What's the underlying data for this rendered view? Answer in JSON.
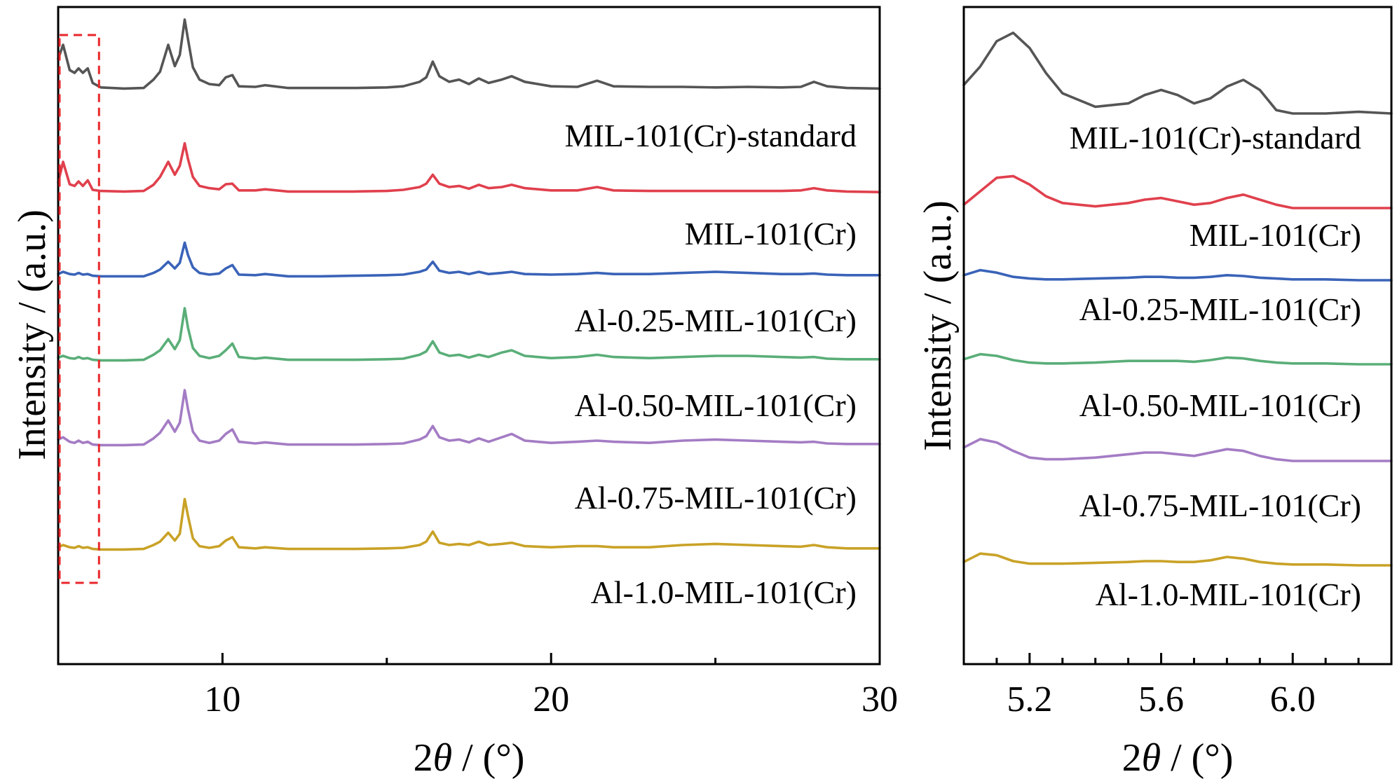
{
  "chart_data": [
    {
      "type": "line",
      "xlabel_prefix": "2",
      "xlabel_theta": "θ",
      "xlabel_suffix": " / (°)",
      "ylabel": "Intensity / (a.u.)",
      "xlim": [
        5,
        30
      ],
      "xticks": [
        10,
        20,
        30
      ],
      "minor_xticks": [
        15,
        25
      ],
      "y_ticks_shown": false,
      "highlight_box_x": [
        5,
        6.2
      ],
      "series": [
        {
          "name": "MIL-101(Cr)-standard",
          "color": "#555555",
          "x": [
            5.0,
            5.15,
            5.35,
            5.5,
            5.62,
            5.75,
            5.9,
            6.05,
            6.3,
            7.0,
            7.6,
            7.9,
            8.1,
            8.35,
            8.55,
            8.7,
            8.85,
            8.95,
            9.1,
            9.3,
            9.6,
            9.9,
            10.1,
            10.3,
            10.5,
            11.0,
            11.3,
            12.0,
            13.0,
            14.0,
            15.0,
            15.5,
            16.0,
            16.2,
            16.4,
            16.6,
            16.9,
            17.2,
            17.5,
            17.8,
            18.1,
            18.5,
            18.8,
            19.2,
            20.0,
            20.8,
            21.4,
            21.9,
            23.0,
            24.0,
            25.0,
            26.0,
            27.0,
            27.6,
            28.0,
            28.4,
            29.0,
            30.0
          ],
          "y": [
            0.55,
            0.8,
            0.35,
            0.3,
            0.38,
            0.3,
            0.38,
            0.12,
            0.04,
            0.02,
            0.03,
            0.18,
            0.32,
            0.8,
            0.42,
            0.62,
            1.25,
            0.9,
            0.4,
            0.18,
            0.1,
            0.08,
            0.22,
            0.26,
            0.06,
            0.05,
            0.08,
            0.03,
            0.03,
            0.03,
            0.04,
            0.06,
            0.14,
            0.22,
            0.5,
            0.24,
            0.14,
            0.18,
            0.1,
            0.2,
            0.12,
            0.18,
            0.24,
            0.14,
            0.06,
            0.05,
            0.16,
            0.06,
            0.05,
            0.05,
            0.04,
            0.05,
            0.04,
            0.05,
            0.14,
            0.06,
            0.03,
            0.02
          ]
        },
        {
          "name": "MIL-101(Cr)",
          "color": "#e0404d",
          "x": [
            5.0,
            5.15,
            5.35,
            5.5,
            5.62,
            5.75,
            5.9,
            6.05,
            6.3,
            7.0,
            7.6,
            7.9,
            8.1,
            8.35,
            8.55,
            8.7,
            8.85,
            8.95,
            9.1,
            9.3,
            9.6,
            9.9,
            10.1,
            10.3,
            10.5,
            11.0,
            11.3,
            12.0,
            13.0,
            14.0,
            15.0,
            15.5,
            16.0,
            16.2,
            16.4,
            16.6,
            16.9,
            17.2,
            17.5,
            17.8,
            18.1,
            18.5,
            18.8,
            19.2,
            20.0,
            20.8,
            21.4,
            21.9,
            23.0,
            24.0,
            25.0,
            26.0,
            27.0,
            27.6,
            28.0,
            28.4,
            29.0,
            30.0
          ],
          "y": [
            0.18,
            0.55,
            0.15,
            0.12,
            0.2,
            0.12,
            0.22,
            0.05,
            0.03,
            0.02,
            0.03,
            0.14,
            0.28,
            0.55,
            0.32,
            0.48,
            0.88,
            0.6,
            0.28,
            0.12,
            0.08,
            0.06,
            0.15,
            0.16,
            0.04,
            0.04,
            0.06,
            0.02,
            0.02,
            0.02,
            0.03,
            0.05,
            0.1,
            0.16,
            0.32,
            0.16,
            0.1,
            0.12,
            0.07,
            0.14,
            0.08,
            0.1,
            0.14,
            0.08,
            0.04,
            0.04,
            0.1,
            0.04,
            0.03,
            0.03,
            0.03,
            0.03,
            0.03,
            0.04,
            0.08,
            0.04,
            0.02,
            0.01
          ]
        },
        {
          "name": "Al-0.25-MIL-101(Cr)",
          "color": "#3a63b8",
          "x": [
            5.0,
            5.15,
            5.35,
            5.5,
            5.62,
            5.75,
            5.9,
            6.05,
            6.3,
            7.0,
            7.6,
            7.9,
            8.1,
            8.35,
            8.55,
            8.7,
            8.85,
            8.95,
            9.1,
            9.3,
            9.6,
            9.9,
            10.1,
            10.3,
            10.5,
            11.0,
            11.3,
            12.0,
            13.0,
            14.0,
            15.0,
            15.5,
            16.0,
            16.2,
            16.4,
            16.6,
            16.9,
            17.2,
            17.5,
            17.8,
            18.1,
            18.5,
            18.8,
            19.2,
            20.0,
            20.8,
            21.4,
            21.9,
            23.0,
            24.0,
            25.0,
            26.0,
            27.0,
            27.6,
            28.0,
            28.4,
            29.0,
            30.0
          ],
          "y": [
            0.06,
            0.1,
            0.06,
            0.05,
            0.08,
            0.05,
            0.06,
            0.03,
            0.02,
            0.02,
            0.02,
            0.08,
            0.14,
            0.28,
            0.16,
            0.26,
            0.62,
            0.4,
            0.18,
            0.08,
            0.05,
            0.07,
            0.16,
            0.22,
            0.05,
            0.04,
            0.06,
            0.02,
            0.02,
            0.03,
            0.04,
            0.05,
            0.1,
            0.14,
            0.28,
            0.12,
            0.08,
            0.1,
            0.06,
            0.1,
            0.06,
            0.08,
            0.1,
            0.06,
            0.05,
            0.06,
            0.08,
            0.06,
            0.06,
            0.08,
            0.1,
            0.08,
            0.06,
            0.06,
            0.07,
            0.05,
            0.04,
            0.04
          ]
        },
        {
          "name": "Al-0.50-MIL-101(Cr)",
          "color": "#5aae78",
          "x": [
            5.0,
            5.15,
            5.35,
            5.5,
            5.62,
            5.75,
            5.9,
            6.05,
            6.3,
            7.0,
            7.6,
            7.9,
            8.1,
            8.35,
            8.55,
            8.7,
            8.85,
            8.95,
            9.1,
            9.3,
            9.6,
            9.9,
            10.1,
            10.3,
            10.5,
            11.0,
            11.3,
            12.0,
            13.0,
            14.0,
            15.0,
            15.5,
            16.0,
            16.2,
            16.4,
            16.6,
            16.9,
            17.2,
            17.5,
            17.8,
            18.1,
            18.5,
            18.8,
            19.2,
            20.0,
            20.8,
            21.4,
            21.9,
            23.0,
            24.0,
            25.0,
            26.0,
            27.0,
            27.6,
            28.0,
            28.4,
            29.0,
            30.0
          ],
          "y": [
            0.07,
            0.1,
            0.06,
            0.05,
            0.08,
            0.05,
            0.06,
            0.03,
            0.02,
            0.02,
            0.03,
            0.12,
            0.2,
            0.4,
            0.22,
            0.38,
            0.95,
            0.6,
            0.24,
            0.1,
            0.06,
            0.1,
            0.2,
            0.32,
            0.08,
            0.05,
            0.07,
            0.03,
            0.03,
            0.03,
            0.04,
            0.05,
            0.12,
            0.18,
            0.36,
            0.16,
            0.1,
            0.12,
            0.07,
            0.12,
            0.08,
            0.16,
            0.2,
            0.1,
            0.06,
            0.08,
            0.12,
            0.08,
            0.06,
            0.08,
            0.1,
            0.1,
            0.08,
            0.07,
            0.08,
            0.05,
            0.04,
            0.04
          ]
        },
        {
          "name": "Al-0.75-MIL-101(Cr)",
          "color": "#a47cc4",
          "x": [
            5.0,
            5.15,
            5.35,
            5.5,
            5.62,
            5.75,
            5.9,
            6.05,
            6.3,
            7.0,
            7.6,
            7.9,
            8.1,
            8.35,
            8.55,
            8.7,
            8.85,
            8.95,
            9.1,
            9.3,
            9.6,
            9.9,
            10.1,
            10.3,
            10.5,
            11.0,
            11.3,
            12.0,
            13.0,
            14.0,
            15.0,
            15.5,
            16.0,
            16.2,
            16.4,
            16.6,
            16.9,
            17.2,
            17.5,
            17.8,
            18.1,
            18.5,
            18.8,
            19.2,
            20.0,
            20.8,
            21.4,
            21.9,
            23.0,
            24.0,
            25.0,
            26.0,
            27.0,
            27.6,
            28.0,
            28.4,
            29.0,
            30.0
          ],
          "y": [
            0.12,
            0.16,
            0.08,
            0.06,
            0.1,
            0.06,
            0.08,
            0.03,
            0.02,
            0.02,
            0.03,
            0.14,
            0.24,
            0.46,
            0.26,
            0.42,
            1.0,
            0.66,
            0.26,
            0.1,
            0.06,
            0.1,
            0.22,
            0.3,
            0.08,
            0.05,
            0.07,
            0.03,
            0.03,
            0.03,
            0.04,
            0.05,
            0.12,
            0.18,
            0.36,
            0.16,
            0.1,
            0.12,
            0.07,
            0.14,
            0.08,
            0.16,
            0.22,
            0.1,
            0.06,
            0.08,
            0.1,
            0.08,
            0.06,
            0.1,
            0.12,
            0.1,
            0.08,
            0.07,
            0.08,
            0.05,
            0.04,
            0.04
          ]
        },
        {
          "name": "Al-1.0-MIL-101(Cr)",
          "color": "#c9a227",
          "x": [
            5.0,
            5.15,
            5.35,
            5.5,
            5.62,
            5.75,
            5.9,
            6.05,
            6.3,
            7.0,
            7.6,
            7.9,
            8.1,
            8.35,
            8.55,
            8.7,
            8.85,
            8.95,
            9.1,
            9.3,
            9.6,
            9.9,
            10.1,
            10.3,
            10.5,
            11.0,
            11.3,
            12.0,
            13.0,
            14.0,
            15.0,
            15.5,
            16.0,
            16.2,
            16.4,
            16.6,
            16.9,
            17.2,
            17.5,
            17.8,
            18.1,
            18.5,
            18.8,
            19.2,
            20.0,
            20.8,
            21.4,
            21.9,
            23.0,
            24.0,
            25.0,
            26.0,
            27.0,
            27.6,
            28.0,
            28.4,
            29.0,
            30.0
          ],
          "y": [
            0.06,
            0.1,
            0.06,
            0.05,
            0.08,
            0.05,
            0.06,
            0.03,
            0.02,
            0.02,
            0.03,
            0.1,
            0.16,
            0.32,
            0.18,
            0.3,
            0.92,
            0.62,
            0.22,
            0.08,
            0.05,
            0.08,
            0.18,
            0.24,
            0.06,
            0.04,
            0.06,
            0.03,
            0.03,
            0.03,
            0.04,
            0.05,
            0.1,
            0.16,
            0.34,
            0.14,
            0.1,
            0.12,
            0.1,
            0.16,
            0.1,
            0.12,
            0.14,
            0.08,
            0.06,
            0.08,
            0.08,
            0.06,
            0.06,
            0.1,
            0.12,
            0.1,
            0.08,
            0.07,
            0.1,
            0.06,
            0.04,
            0.04
          ]
        }
      ]
    },
    {
      "type": "line",
      "xlabel_prefix": "2",
      "xlabel_theta": "θ",
      "xlabel_suffix": " / (°)",
      "ylabel": "Intensity / (a.u.)",
      "xlim": [
        5.0,
        6.3
      ],
      "xticks": [
        5.2,
        5.6,
        6.0
      ],
      "xtick_labels": [
        "5.2",
        "5.6",
        "6.0"
      ],
      "minor_xticks": [
        5.1,
        5.3,
        5.4,
        5.5,
        5.7,
        5.8,
        5.9,
        6.1,
        6.2
      ],
      "y_ticks_shown": false,
      "series": [
        {
          "name": "MIL-101(Cr)-standard",
          "color": "#555555",
          "x": [
            5.0,
            5.05,
            5.1,
            5.15,
            5.2,
            5.25,
            5.3,
            5.4,
            5.5,
            5.55,
            5.6,
            5.65,
            5.7,
            5.75,
            5.8,
            5.85,
            5.9,
            5.95,
            6.0,
            6.1,
            6.2,
            6.3
          ],
          "y": [
            0.34,
            0.56,
            0.86,
            0.96,
            0.78,
            0.48,
            0.24,
            0.08,
            0.12,
            0.22,
            0.28,
            0.22,
            0.12,
            0.18,
            0.32,
            0.4,
            0.28,
            0.04,
            0.0,
            0.0,
            0.02,
            0.0
          ]
        },
        {
          "name": "MIL-101(Cr)",
          "color": "#e0404d",
          "x": [
            5.0,
            5.05,
            5.1,
            5.15,
            5.2,
            5.25,
            5.3,
            5.4,
            5.5,
            5.55,
            5.6,
            5.65,
            5.7,
            5.75,
            5.8,
            5.85,
            5.9,
            5.95,
            6.0,
            6.1,
            6.2,
            6.3
          ],
          "y": [
            0.04,
            0.2,
            0.36,
            0.38,
            0.28,
            0.14,
            0.06,
            0.02,
            0.06,
            0.1,
            0.12,
            0.08,
            0.04,
            0.06,
            0.12,
            0.16,
            0.1,
            0.04,
            0.0,
            0.0,
            0.0,
            0.0
          ]
        },
        {
          "name": "Al-0.25-MIL-101(Cr)",
          "color": "#3a63b8",
          "x": [
            5.0,
            5.05,
            5.1,
            5.15,
            5.2,
            5.25,
            5.3,
            5.4,
            5.5,
            5.55,
            5.6,
            5.65,
            5.7,
            5.75,
            5.8,
            5.85,
            5.9,
            5.95,
            6.0,
            6.1,
            6.2,
            6.3
          ],
          "y": [
            0.06,
            0.12,
            0.09,
            0.04,
            0.02,
            0.01,
            0.01,
            0.02,
            0.03,
            0.04,
            0.04,
            0.03,
            0.03,
            0.04,
            0.06,
            0.05,
            0.03,
            0.02,
            0.01,
            0.01,
            0.0,
            0.0
          ]
        },
        {
          "name": "Al-0.50-MIL-101(Cr)",
          "color": "#5aae78",
          "x": [
            5.0,
            5.05,
            5.1,
            5.15,
            5.2,
            5.25,
            5.3,
            5.4,
            5.5,
            5.55,
            5.6,
            5.65,
            5.7,
            5.75,
            5.8,
            5.85,
            5.9,
            5.95,
            6.0,
            6.1,
            6.2,
            6.3
          ],
          "y": [
            0.06,
            0.12,
            0.1,
            0.05,
            0.02,
            0.01,
            0.01,
            0.02,
            0.04,
            0.04,
            0.04,
            0.04,
            0.03,
            0.05,
            0.08,
            0.07,
            0.04,
            0.02,
            0.01,
            0.01,
            0.0,
            0.0
          ]
        },
        {
          "name": "Al-0.75-MIL-101(Cr)",
          "color": "#a47cc4",
          "x": [
            5.0,
            5.05,
            5.1,
            5.15,
            5.2,
            5.25,
            5.3,
            5.4,
            5.5,
            5.55,
            5.6,
            5.65,
            5.7,
            5.75,
            5.8,
            5.85,
            5.9,
            5.95,
            6.0,
            6.1,
            6.2,
            6.3
          ],
          "y": [
            0.16,
            0.26,
            0.22,
            0.12,
            0.04,
            0.02,
            0.02,
            0.04,
            0.08,
            0.1,
            0.1,
            0.08,
            0.06,
            0.1,
            0.14,
            0.12,
            0.06,
            0.02,
            0.0,
            0.0,
            0.0,
            0.0
          ]
        },
        {
          "name": "Al-1.0-MIL-101(Cr)",
          "color": "#c9a227",
          "x": [
            5.0,
            5.05,
            5.1,
            5.15,
            5.2,
            5.25,
            5.3,
            5.4,
            5.5,
            5.55,
            5.6,
            5.65,
            5.7,
            5.75,
            5.8,
            5.85,
            5.9,
            5.95,
            6.0,
            6.1,
            6.2,
            6.3
          ],
          "y": [
            0.04,
            0.14,
            0.12,
            0.05,
            0.02,
            0.02,
            0.02,
            0.03,
            0.04,
            0.05,
            0.05,
            0.04,
            0.04,
            0.06,
            0.1,
            0.08,
            0.04,
            0.02,
            0.01,
            0.01,
            0.0,
            0.0
          ]
        }
      ]
    }
  ]
}
